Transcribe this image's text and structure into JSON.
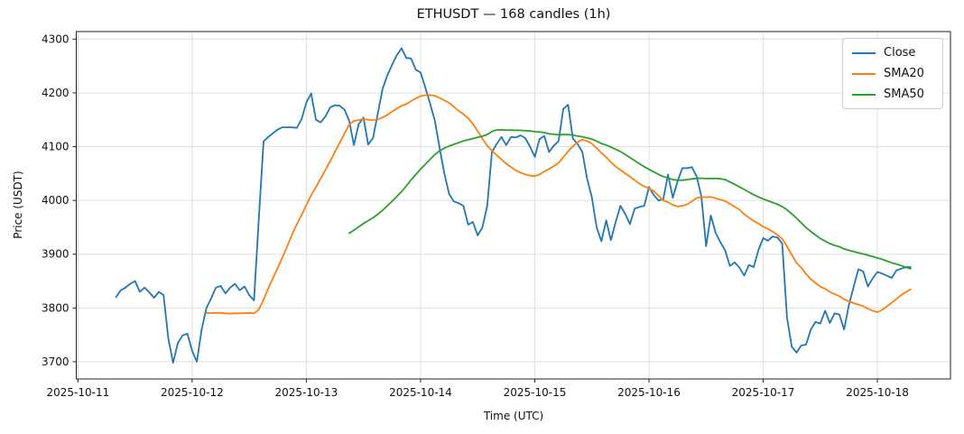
{
  "title": "ETHUSDT — 168 candles (1h)",
  "axes": {
    "xlabel": "Time (UTC)",
    "ylabel": "Price (USDT)",
    "x_tick_labels": [
      "2025-10-11",
      "2025-10-12",
      "2025-10-13",
      "2025-10-14",
      "2025-10-15",
      "2025-10-16",
      "2025-10-17",
      "2025-10-18"
    ],
    "y_tick_labels": [
      "3700",
      "3800",
      "3900",
      "4000",
      "4100",
      "4200",
      "4300"
    ]
  },
  "legend": {
    "position": "upper right",
    "items": [
      "Close",
      "SMA20",
      "SMA50"
    ]
  },
  "chart_data": {
    "type": "line",
    "title": "ETHUSDT — 168 candles (1h)",
    "xlabel": "Time (UTC)",
    "ylabel": "Price (USDT)",
    "n_points": 168,
    "interval": "1h",
    "x_start_label": "2025-10-11 08:00",
    "x_tick_hours": [
      0,
      24,
      48,
      72,
      96,
      120,
      144,
      168
    ],
    "x_tick_labels": [
      "2025-10-11",
      "2025-10-12",
      "2025-10-13",
      "2025-10-14",
      "2025-10-15",
      "2025-10-16",
      "2025-10-17",
      "2025-10-18"
    ],
    "y_ticks": [
      3700,
      3800,
      3900,
      4000,
      4100,
      4200,
      4300
    ],
    "xlim_hours": [
      -0.35,
      183.35
    ],
    "ylim": [
      3668,
      4314
    ],
    "data_start_hour": 8,
    "grid": true,
    "legend_position": "upper right",
    "colors": {
      "close": "#1f77b4",
      "sma20": "#ff7f0e",
      "sma50": "#2ca02c",
      "grid": "#e0e0e0",
      "spine": "#222222",
      "text": "#111111"
    },
    "series": [
      {
        "name": "Close",
        "color": "#1f77b4",
        "values": [
          3820,
          3833,
          3838,
          3845,
          3850,
          3830,
          3838,
          3829,
          3819,
          3830,
          3824,
          3743,
          3698,
          3735,
          3749,
          3752,
          3720,
          3700,
          3760,
          3800,
          3818,
          3838,
          3841,
          3827,
          3838,
          3845,
          3833,
          3840,
          3824,
          3814,
          3965,
          4110,
          4118,
          4125,
          4132,
          4136,
          4136,
          4136,
          4135,
          4151,
          4182,
          4199,
          4150,
          4145,
          4156,
          4173,
          4177,
          4176,
          4169,
          4148,
          4103,
          4142,
          4154,
          4104,
          4116,
          4161,
          4207,
          4232,
          4252,
          4270,
          4283,
          4265,
          4264,
          4243,
          4238,
          4210,
          4180,
          4148,
          4098,
          4050,
          4012,
          3998,
          3995,
          3990,
          3955,
          3960,
          3935,
          3950,
          3990,
          4090,
          4105,
          4118,
          4103,
          4118,
          4117,
          4121,
          4116,
          4100,
          4081,
          4114,
          4120,
          4090,
          4102,
          4110,
          4170,
          4178,
          4115,
          4105,
          4090,
          4040,
          4006,
          3950,
          3924,
          3963,
          3926,
          3960,
          3990,
          3975,
          3956,
          3985,
          3988,
          3990,
          4025,
          4010,
          4000,
          4002,
          4048,
          4005,
          4035,
          4060,
          4060,
          4062,
          4045,
          4008,
          3915,
          3972,
          3940,
          3922,
          3907,
          3878,
          3885,
          3875,
          3860,
          3880,
          3876,
          3908,
          3930,
          3925,
          3933,
          3931,
          3920,
          3782,
          3728,
          3717,
          3730,
          3732,
          3760,
          3774,
          3771,
          3795,
          3772,
          3790,
          3788,
          3760,
          3805,
          3839,
          3872,
          3868,
          3840,
          3855,
          3867,
          3864,
          3860,
          3856,
          3870,
          3873,
          3876,
          3876
        ]
      },
      {
        "name": "SMA20",
        "color": "#ff7f0e",
        "derived_from": "Close",
        "window": 20
      },
      {
        "name": "SMA50",
        "color": "#2ca02c",
        "derived_from": "Close",
        "window": 50
      }
    ]
  }
}
